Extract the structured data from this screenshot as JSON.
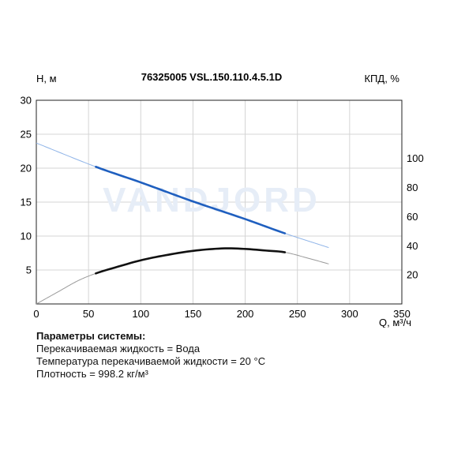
{
  "chart_data": {
    "type": "line",
    "title": "76325005 VSL.150.110.4.5.1D",
    "watermark": "VANDJORD",
    "ylabel_left": "H, м",
    "ylabel_right": "КПД, %",
    "xlabel": "Q, м³/ч",
    "xlim": [
      0,
      350
    ],
    "ylim_left": [
      0,
      30
    ],
    "ylim_right": [
      0,
      140
    ],
    "x_ticks": [
      0,
      50,
      100,
      150,
      200,
      250,
      300,
      350
    ],
    "y_ticks_left": [
      5,
      10,
      15,
      20,
      25,
      30
    ],
    "y_ticks_right": [
      20,
      40,
      60,
      80,
      100
    ],
    "grid": true,
    "colors": {
      "head": "#1f5fbf",
      "head_ext": "#8fb4e8",
      "eff": "#111111",
      "eff_ext": "#9a9a9a",
      "grid": "#d4d4d4",
      "watermark": "#e6edf7"
    },
    "series": [
      {
        "id": "head",
        "axis": "left",
        "x": [
          0,
          57,
          100,
          150,
          200,
          238,
          280
        ],
        "y": [
          23.7,
          20.2,
          17.9,
          15.1,
          12.5,
          10.4,
          8.3
        ],
        "active_range": [
          57,
          238
        ]
      },
      {
        "id": "efficiency",
        "axis": "right",
        "x": [
          0,
          20,
          40,
          57,
          80,
          100,
          120,
          150,
          180,
          200,
          220,
          238,
          260,
          280
        ],
        "y": [
          0,
          8,
          16,
          21,
          26,
          30,
          33,
          36.5,
          38.2,
          37.8,
          36.7,
          35.5,
          31.5,
          27.5
        ],
        "active_range": [
          57,
          238
        ]
      }
    ]
  },
  "system": {
    "header": "Параметры системы:",
    "line1": "Перекачиваемая жидкость = Вода",
    "line2": "Температура перекачиваемой жидкости = 20 °C",
    "line3": "Плотность = 998.2 кг/м³"
  }
}
